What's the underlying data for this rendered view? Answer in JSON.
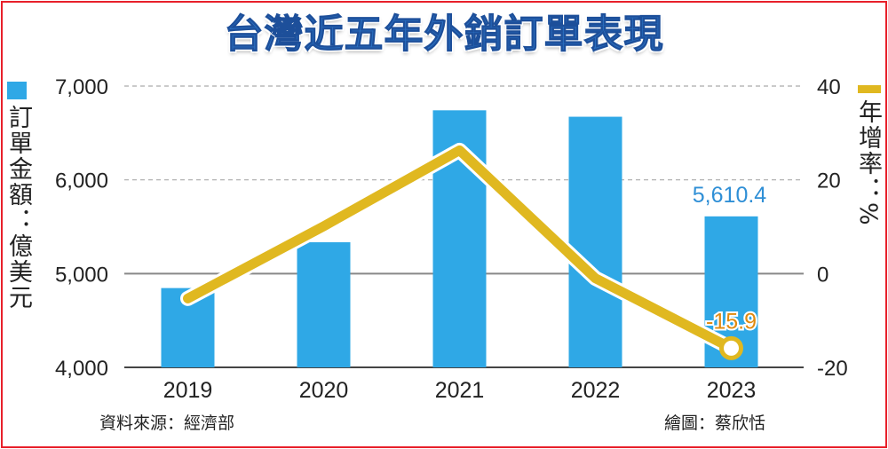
{
  "chart_data": {
    "type": "bar+line",
    "title": "台灣近五年外銷訂單表現",
    "categories": [
      "2019",
      "2020",
      "2021",
      "2022",
      "2023"
    ],
    "series": [
      {
        "name": "訂單金額：億美元",
        "type": "bar",
        "axis": "left",
        "color": "#2fa8e6",
        "values": [
          4845.8,
          5334.3,
          6741.5,
          6673.0,
          5610.4
        ]
      },
      {
        "name": "年增率：%",
        "type": "line",
        "axis": "right",
        "color": "#e0b820",
        "values": [
          -5.3,
          10.1,
          26.3,
          -1.0,
          -15.9
        ]
      }
    ],
    "left_axis": {
      "label": "訂單金額：億美元",
      "ylim": [
        4000,
        7000
      ],
      "ticks": [
        "4,000",
        "5,000",
        "6,000",
        "7,000"
      ],
      "tick_values": [
        4000,
        5000,
        6000,
        7000
      ]
    },
    "right_axis": {
      "label": "年增率：%",
      "ylim": [
        -20,
        40
      ],
      "ticks": [
        "-20",
        "0",
        "20",
        "40"
      ],
      "tick_values": [
        -20,
        0,
        20,
        40
      ]
    },
    "annotations": [
      {
        "text": "5,610.4",
        "series": "bar",
        "index": 4,
        "color": "#2f8fd6"
      },
      {
        "text": "-15.9",
        "series": "line",
        "index": 4,
        "color": "#e08a10"
      }
    ],
    "grid": "dashed horizontal",
    "source": "資料來源：經濟部",
    "credit": "繪圖：蔡欣恬"
  }
}
